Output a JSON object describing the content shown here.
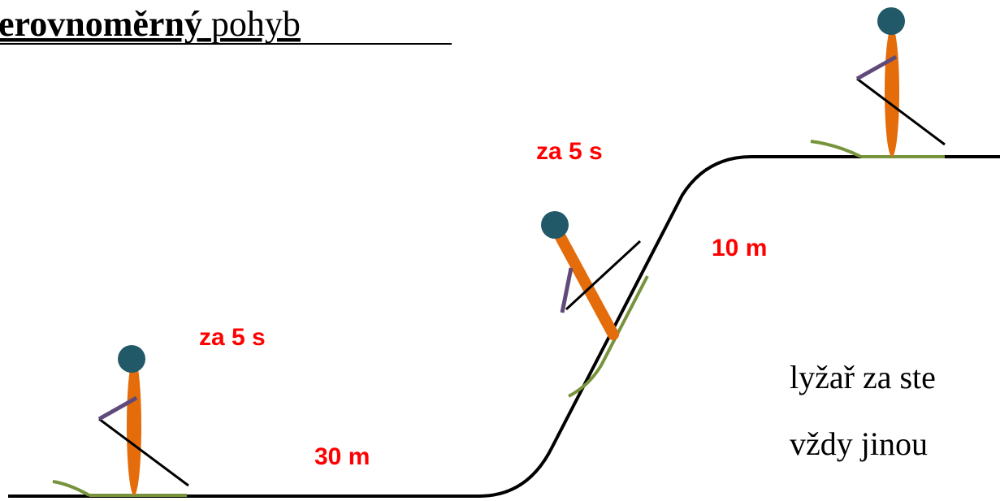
{
  "title": {
    "bold": "erovnoměrný",
    "rest": "pohyb"
  },
  "labels": {
    "time_upper": "za 5 s",
    "distance_slope": "10 m",
    "time_lower": "za 5 s",
    "distance_flat": "30 m"
  },
  "text": {
    "line1": "lyžař za ste",
    "line2": "vždy jinou"
  }
}
